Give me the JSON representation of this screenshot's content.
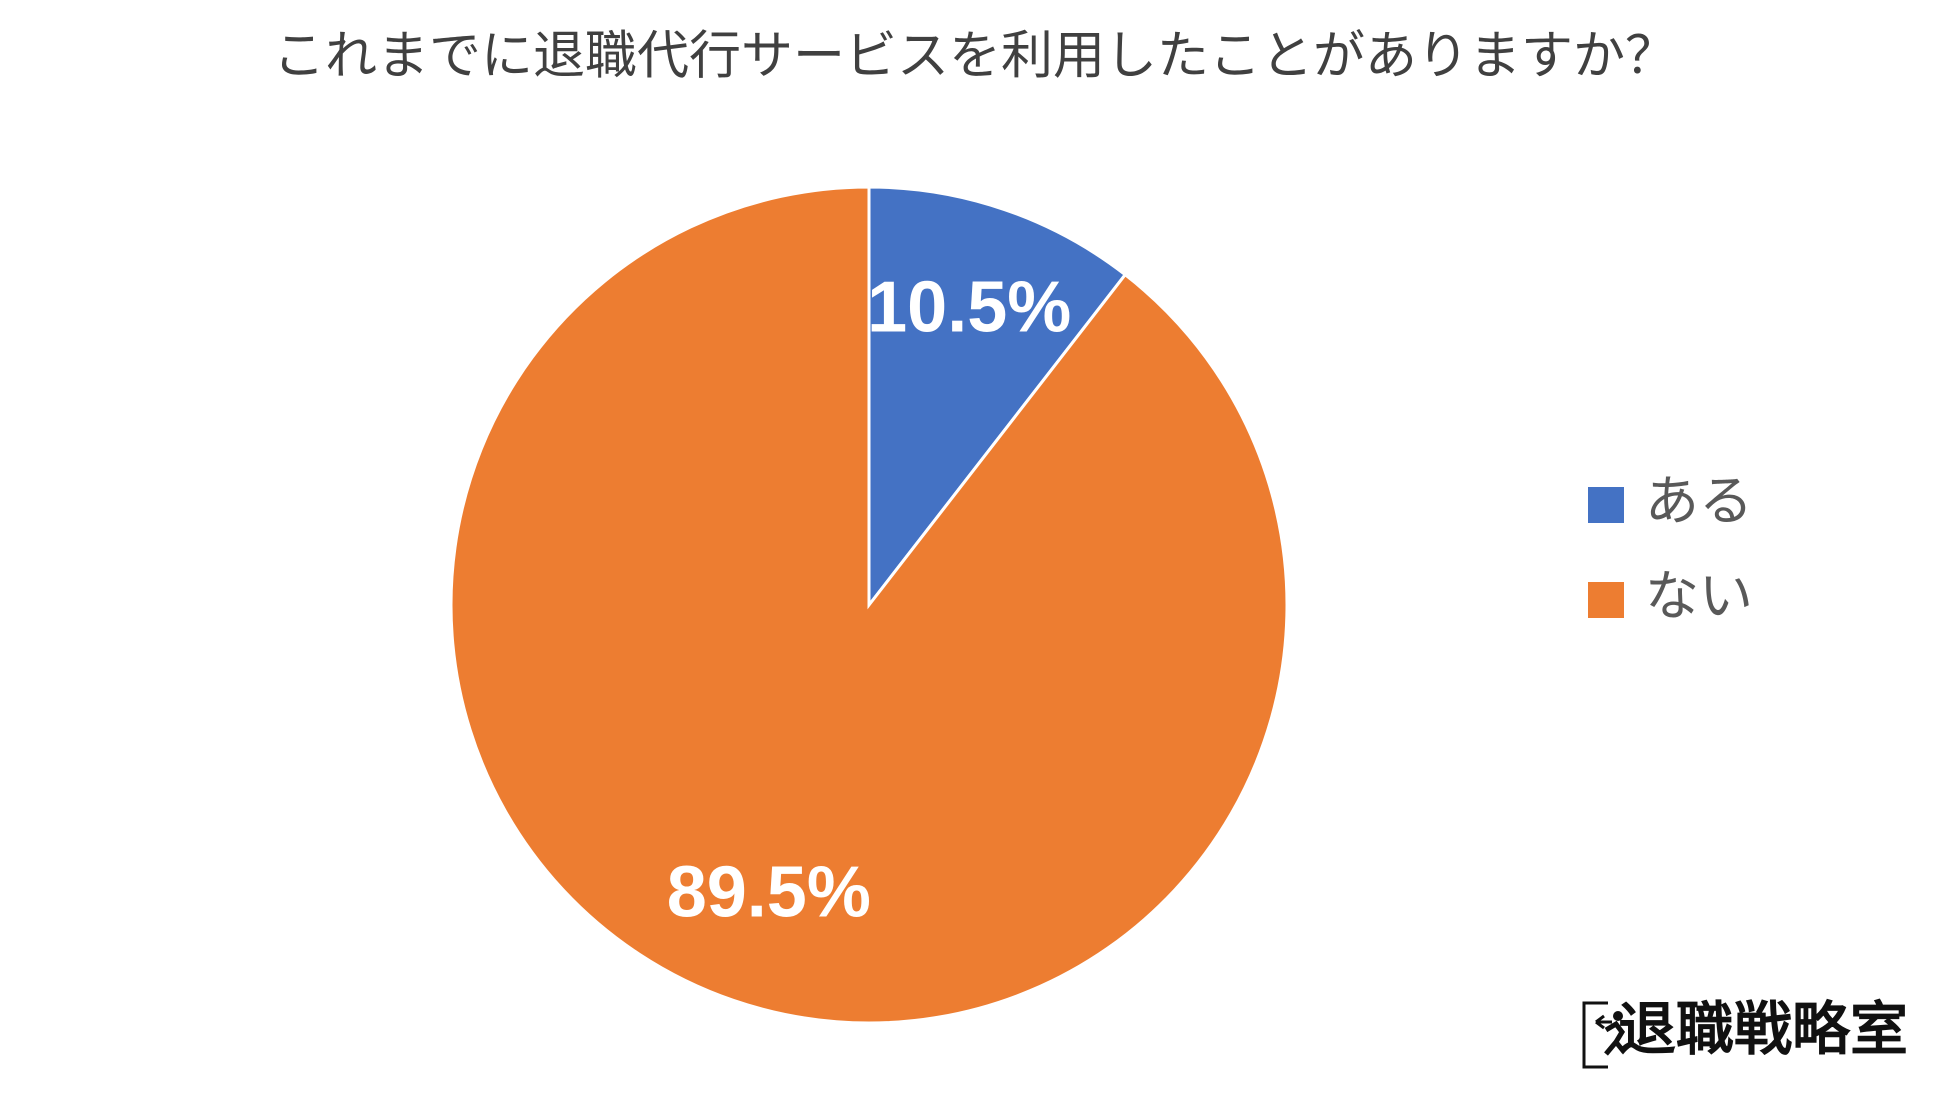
{
  "chart_data": {
    "type": "pie",
    "title": "これまでに退職代行サービスを利用したことがありますか？",
    "categories": [
      "ある",
      "ない"
    ],
    "values": [
      10.5,
      89.5
    ],
    "value_labels": [
      "10.5%",
      "89.5%"
    ],
    "colors": [
      "#4472c4",
      "#ed7d31"
    ],
    "legend": "right"
  },
  "logo": "退職戦略室"
}
